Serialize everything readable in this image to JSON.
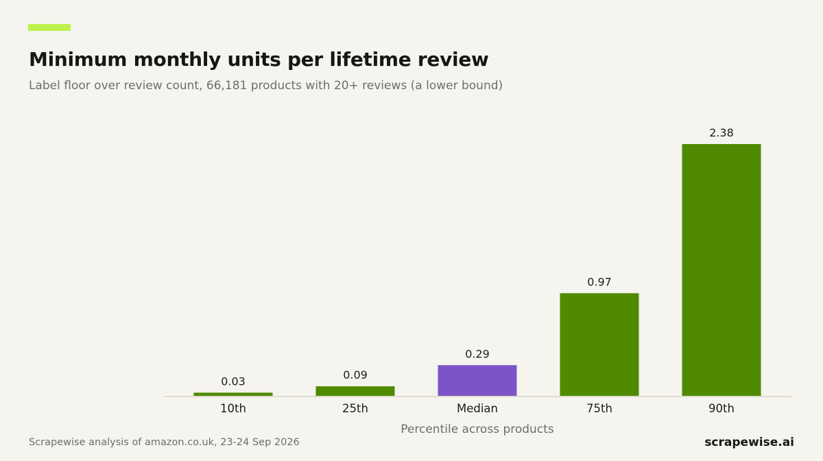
{
  "header": {
    "title": "Minimum monthly units per lifetime review",
    "subtitle": "Label floor over review count, 66,181 products with 20+ reviews (a lower bound)"
  },
  "footer": {
    "source": "Scrapewise analysis of amazon.co.uk, 23-24 Sep 2026",
    "brand": "scrapewise.ai"
  },
  "colors": {
    "accent": "#bff24a",
    "bar": "#4f8a00",
    "highlight": "#7b55c7",
    "axis": "#dedbd0",
    "background": "#f5f4ee"
  },
  "chart_data": {
    "type": "bar",
    "title": "Minimum monthly units per lifetime review",
    "subtitle": "Label floor over review count, 66,181 products with 20+ reviews (a lower bound)",
    "xlabel": "Percentile across products",
    "ylabel": "",
    "categories": [
      "10th",
      "25th",
      "Median",
      "75th",
      "90th"
    ],
    "values": [
      0.03,
      0.09,
      0.29,
      0.97,
      2.38
    ],
    "data_labels": [
      "0.03",
      "0.09",
      "0.29",
      "0.97",
      "2.38"
    ],
    "highlight_category": "Median",
    "ylim": [
      0,
      2.38
    ],
    "grid": false,
    "legend": "none"
  }
}
